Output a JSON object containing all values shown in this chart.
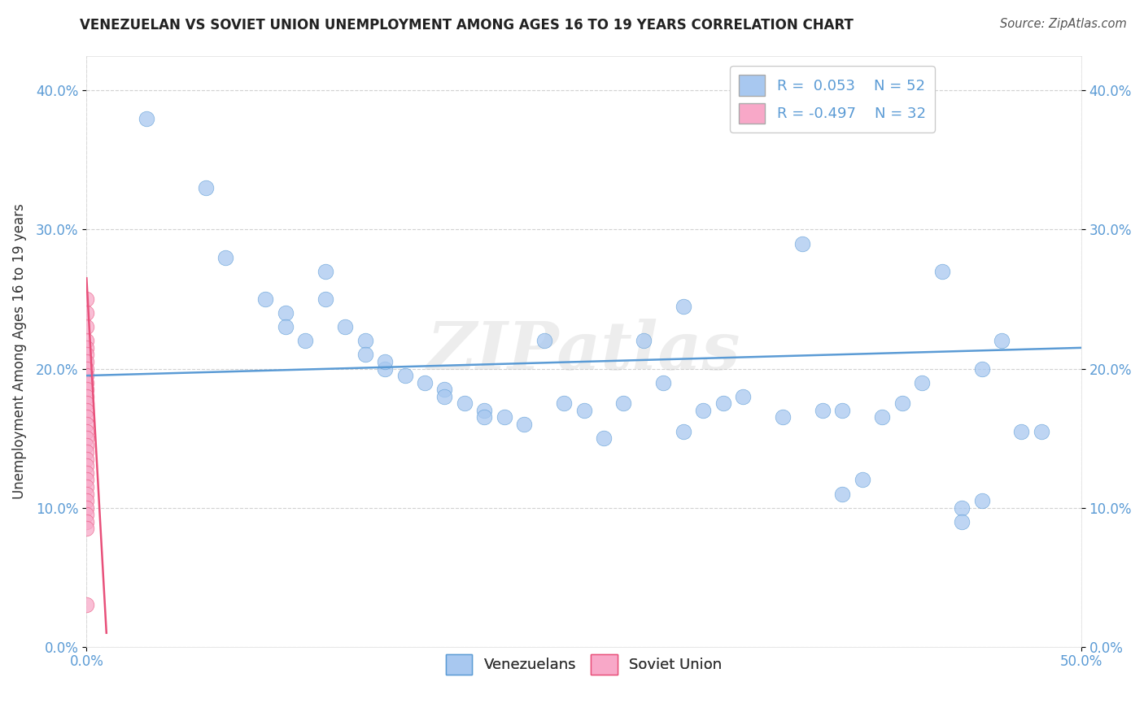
{
  "title": "VENEZUELAN VS SOVIET UNION UNEMPLOYMENT AMONG AGES 16 TO 19 YEARS CORRELATION CHART",
  "source": "Source: ZipAtlas.com",
  "ylabel": "Unemployment Among Ages 16 to 19 years",
  "xlabel_venezuelan": "Venezuelans",
  "xlabel_soviet": "Soviet Union",
  "legend_r_venezuelan": "R =  0.053",
  "legend_n_venezuelan": "N = 52",
  "legend_r_soviet": "R = -0.497",
  "legend_n_soviet": "N = 32",
  "xmin": 0.0,
  "xmax": 0.5,
  "ymin": 0.0,
  "ymax": 0.425,
  "xticks": [
    0.0,
    0.5
  ],
  "yticks": [
    0.0,
    0.1,
    0.2,
    0.3,
    0.4
  ],
  "ytick_labels": [
    "0.0%",
    "10.0%",
    "20.0%",
    "30.0%",
    "40.0%"
  ],
  "xtick_labels": [
    "0.0%",
    "50.0%"
  ],
  "color_venezuelan": "#a8c8f0",
  "color_soviet": "#f8a8c8",
  "line_color_venezuelan": "#5b9bd5",
  "line_color_soviet": "#e8507a",
  "background_color": "#ffffff",
  "watermark": "ZIPatlas",
  "venezuelan_x": [
    0.03,
    0.06,
    0.07,
    0.09,
    0.1,
    0.1,
    0.11,
    0.12,
    0.12,
    0.13,
    0.14,
    0.14,
    0.15,
    0.15,
    0.16,
    0.17,
    0.18,
    0.18,
    0.19,
    0.2,
    0.2,
    0.21,
    0.22,
    0.23,
    0.24,
    0.25,
    0.26,
    0.27,
    0.28,
    0.29,
    0.3,
    0.31,
    0.32,
    0.33,
    0.35,
    0.36,
    0.37,
    0.38,
    0.39,
    0.4,
    0.41,
    0.42,
    0.43,
    0.44,
    0.45,
    0.46,
    0.47,
    0.48,
    0.38,
    0.45,
    0.3,
    0.44
  ],
  "venezuelan_y": [
    0.38,
    0.33,
    0.28,
    0.25,
    0.24,
    0.23,
    0.22,
    0.27,
    0.25,
    0.23,
    0.22,
    0.21,
    0.2,
    0.205,
    0.195,
    0.19,
    0.185,
    0.18,
    0.175,
    0.17,
    0.165,
    0.165,
    0.16,
    0.22,
    0.175,
    0.17,
    0.15,
    0.175,
    0.22,
    0.19,
    0.245,
    0.17,
    0.175,
    0.18,
    0.165,
    0.29,
    0.17,
    0.11,
    0.12,
    0.165,
    0.175,
    0.19,
    0.27,
    0.1,
    0.105,
    0.22,
    0.155,
    0.155,
    0.17,
    0.2,
    0.155,
    0.09
  ],
  "soviet_x": [
    0.0,
    0.0,
    0.0,
    0.0,
    0.0,
    0.0,
    0.0,
    0.0,
    0.0,
    0.0,
    0.0,
    0.0,
    0.0,
    0.0,
    0.0,
    0.0,
    0.0,
    0.0,
    0.0,
    0.0,
    0.0,
    0.0,
    0.0,
    0.0,
    0.0,
    0.0,
    0.0,
    0.0,
    0.0,
    0.0,
    0.0,
    0.0
  ],
  "soviet_y": [
    0.25,
    0.24,
    0.23,
    0.22,
    0.215,
    0.21,
    0.205,
    0.2,
    0.195,
    0.19,
    0.185,
    0.18,
    0.175,
    0.17,
    0.165,
    0.16,
    0.155,
    0.15,
    0.145,
    0.14,
    0.135,
    0.13,
    0.125,
    0.12,
    0.115,
    0.11,
    0.105,
    0.1,
    0.095,
    0.09,
    0.085,
    0.03
  ],
  "venezuelan_trend_x": [
    0.0,
    0.5
  ],
  "venezuelan_trend_y": [
    0.195,
    0.215
  ],
  "soviet_trend_x": [
    0.0,
    0.01
  ],
  "soviet_trend_y": [
    0.265,
    0.01
  ]
}
